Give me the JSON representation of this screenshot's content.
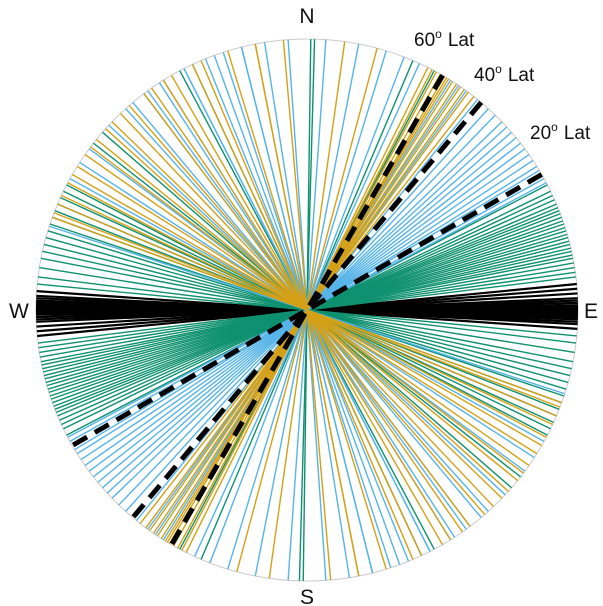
{
  "chart_data": {
    "type": "polar",
    "title": "",
    "cardinal_labels": {
      "north": "N",
      "east": "E",
      "south": "S",
      "west": "W"
    },
    "colors": {
      "circle": "#cccccc",
      "ew_lines": "#000000",
      "green_lines": "#0f9170",
      "blue_lines": "#56b4e9",
      "gold_lines": "#d4a017",
      "reference": "#000000"
    },
    "reference_lines": [
      {
        "name": "60",
        "label": "60",
        "unit": "o",
        "suffix": "Lat",
        "azimuth_deg": 30.0
      },
      {
        "name": "40",
        "label": "40",
        "unit": "o",
        "suffix": "Lat",
        "azimuth_deg": 40.0
      },
      {
        "name": "20",
        "label": "20",
        "unit": "o",
        "suffix": "Lat",
        "azimuth_deg": 60.0
      }
    ],
    "series": [
      {
        "color_key": "ew_lines",
        "azimuths_deg": [
          84.5,
          85.5,
          86.5,
          87.5,
          88.0,
          88.5,
          89.0,
          89.3,
          89.6,
          89.8,
          90.0,
          90.2,
          90.5,
          90.8,
          91.2,
          91.6,
          92.0,
          92.5,
          93.0,
          94.0
        ]
      },
      {
        "color_key": "green_lines",
        "azimuths_deg": [
          0.8,
          1.6,
          23.0,
          28.0,
          62.5,
          64.0,
          65.0,
          66.0,
          67.0,
          67.8,
          68.5,
          69.2,
          70.0,
          70.8,
          71.5,
          72.3,
          73.0,
          73.8,
          74.5,
          75.3,
          76.0,
          76.8,
          77.5,
          78.3,
          79.0,
          80.0,
          81.0,
          82.0,
          83.0,
          95.5,
          97.0,
          99.0,
          101.0,
          102.5,
          104.0,
          105.5,
          107.0,
          108.5,
          110.0,
          111.5,
          113.0,
          114.5,
          116.0,
          117.5,
          128.0,
          131.0,
          152.0,
          155.0
        ]
      },
      {
        "color_key": "blue_lines",
        "azimuths_deg": [
          -40.0,
          -36.0,
          -33.0,
          -27.0,
          -20.0,
          -14.0,
          4.0,
          11.0,
          17.0,
          21.0,
          24.5,
          32.0,
          34.0,
          36.0,
          39.0,
          42.0,
          44.0,
          46.0,
          47.5,
          49.0,
          50.5,
          52.0,
          53.5,
          55.0,
          56.5,
          58.0,
          59.0,
          61.0,
          62.0,
          108.0,
          113.0,
          119.0,
          123.0,
          126.5,
          133.0,
          138.0,
          143.0,
          148.0,
          153.0,
          158.0,
          162.0,
          166.0,
          171.0,
          176.0
        ]
      },
      {
        "color_key": "gold_lines",
        "azimuths_deg": [
          -11.0,
          -25.0,
          -32.0,
          -37.0,
          -43.5,
          -48.0,
          -53.0,
          -58.0,
          -62.0,
          -67.0,
          -70.0,
          8.0,
          15.0,
          26.5,
          27.5,
          28.5,
          29.5,
          30.5,
          31.0,
          31.5,
          32.5,
          33.5,
          34.5,
          35.5,
          36.5,
          38.0,
          111.0,
          115.0,
          120.0,
          125.0,
          129.0,
          134.0,
          139.0,
          145.0,
          150.0,
          157.0,
          163.0,
          169.0,
          175.0
        ]
      }
    ]
  }
}
